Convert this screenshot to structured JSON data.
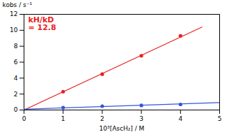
{
  "chart_data": {
    "type": "scatter",
    "x_label": "10³[AscH₂] / M",
    "y_label": "kobs / s⁻¹",
    "annotations": [
      "kH/kD",
      "= 12.8"
    ],
    "series": [
      {
        "color": "#e82020",
        "marker": "circle",
        "x": [
          1.0,
          2.0,
          3.0,
          4.0
        ],
        "values": [
          2.3,
          4.5,
          6.8,
          9.3
        ],
        "fit_x": [
          0.0,
          4.55
        ],
        "fit_y": [
          0.0,
          10.4
        ]
      },
      {
        "color": "#3355dd",
        "marker": "circle",
        "x": [
          1.0,
          2.0,
          3.0,
          4.0
        ],
        "values": [
          0.3,
          0.48,
          0.58,
          0.7
        ],
        "fit_x": [
          0.0,
          5.0
        ],
        "fit_y": [
          0.1,
          0.93
        ]
      }
    ],
    "xlim": [
      0,
      5
    ],
    "ylim": [
      0,
      12
    ],
    "xticks": [
      0,
      1,
      2,
      3,
      4,
      5
    ],
    "yticks": [
      0,
      2,
      4,
      6,
      8,
      10,
      12
    ],
    "grid": false
  }
}
